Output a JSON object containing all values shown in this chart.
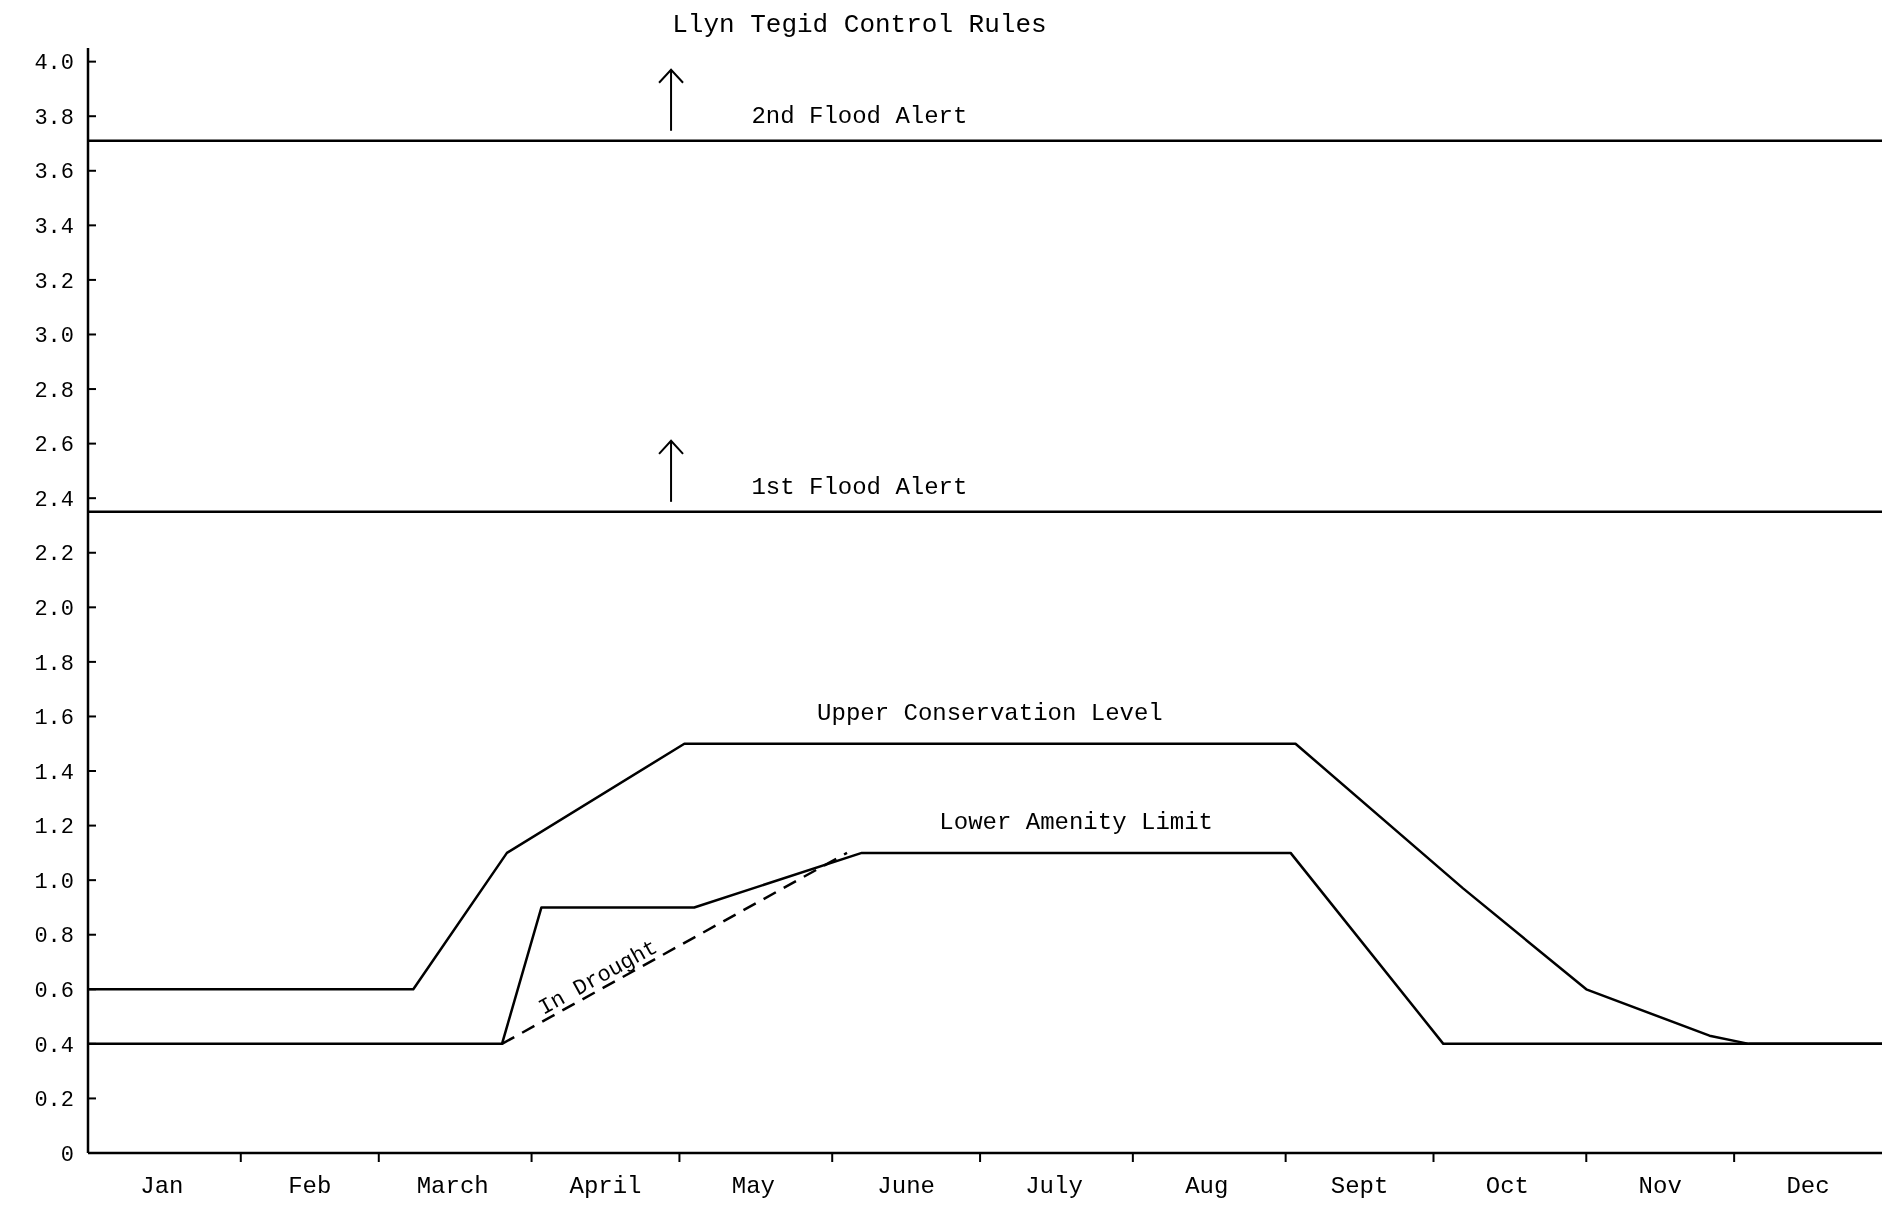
{
  "chart_data": {
    "type": "line",
    "title": "Llyn Tegid Control Rules",
    "x": [
      "--01-01",
      "--03-08",
      "--03-27",
      "--05-02",
      "--09-03",
      "--10-07",
      "--11-01",
      "--11-26",
      "--12-04",
      "--12-31"
    ],
    "series": [
      {
        "name": "Upper Conservation Level",
        "color": "#000000",
        "values": [
          0.6,
          0.6,
          1.1,
          1.5,
          1.5,
          0.97,
          0.6,
          0.43,
          0.4,
          0.4
        ]
      },
      {
        "name": "Lower Amenity Limit",
        "color": "#000000",
        "x": [
          "--01-01",
          "--03-26",
          "--04-03",
          "--05-04",
          "--06-07",
          "--09-02",
          "--10-03",
          "--12-31"
        ],
        "values": [
          0.4,
          0.4,
          0.9,
          0.9,
          1.1,
          1.1,
          0.4,
          0.4
        ]
      },
      {
        "name": "In Drought",
        "color": "#000000",
        "line_style": "dashed",
        "x": [
          "--03-26",
          "--06-04"
        ],
        "values": [
          0.4,
          1.1
        ]
      }
    ],
    "xlim": [
      "--01-01",
      "--12-31"
    ],
    "xticks": [
      {
        "value": "--01-16",
        "label": "Jan"
      },
      {
        "value": "--02-01",
        "label": null
      },
      {
        "value": "--02-15",
        "label": "Feb"
      },
      {
        "value": "--03-01",
        "label": null
      },
      {
        "value": "--03-16",
        "label": "March"
      },
      {
        "value": "--04-01",
        "label": null
      },
      {
        "value": "--04-16",
        "label": "April"
      },
      {
        "value": "--05-01",
        "label": null
      },
      {
        "value": "--05-16",
        "label": "May"
      },
      {
        "value": "--06-01",
        "label": null
      },
      {
        "value": "--06-16",
        "label": "June"
      },
      {
        "value": "--07-01",
        "label": null
      },
      {
        "value": "--07-16",
        "label": "July"
      },
      {
        "value": "--08-01",
        "label": null
      },
      {
        "value": "--08-16",
        "label": "Aug"
      },
      {
        "value": "--09-01",
        "label": null
      },
      {
        "value": "--09-16",
        "label": "Sept"
      },
      {
        "value": "--10-01",
        "label": null
      },
      {
        "value": "--10-16",
        "label": "Oct"
      },
      {
        "value": "--11-01",
        "label": null
      },
      {
        "value": "--11-16",
        "label": "Nov"
      },
      {
        "value": "--12-01",
        "label": null
      },
      {
        "value": "--12-16",
        "label": "Dec"
      }
    ],
    "ylim": [
      0,
      4.05
    ],
    "yticks": [
      0,
      0.2,
      0.4,
      0.6,
      0.8,
      {
        "value": 1,
        "label": "1.0"
      },
      1.2,
      1.4,
      1.6,
      1.8,
      {
        "value": 2,
        "label": "2.0"
      },
      2.2,
      2.4,
      2.6,
      2.8,
      {
        "value": 3,
        "label": "3.0"
      },
      3.2,
      3.4,
      3.6,
      3.8,
      {
        "value": 4,
        "label": "4.0"
      }
    ],
    "ref_lines": [
      {
        "axis": "y",
        "value": 3.71,
        "label": "2nd Flood Alert",
        "color": "#000000"
      },
      {
        "axis": "y",
        "value": 2.35,
        "label": "1st Flood Alert",
        "color": "#000000"
      }
    ],
    "grid": false,
    "marker": "none",
    "line_style": "solid"
  }
}
